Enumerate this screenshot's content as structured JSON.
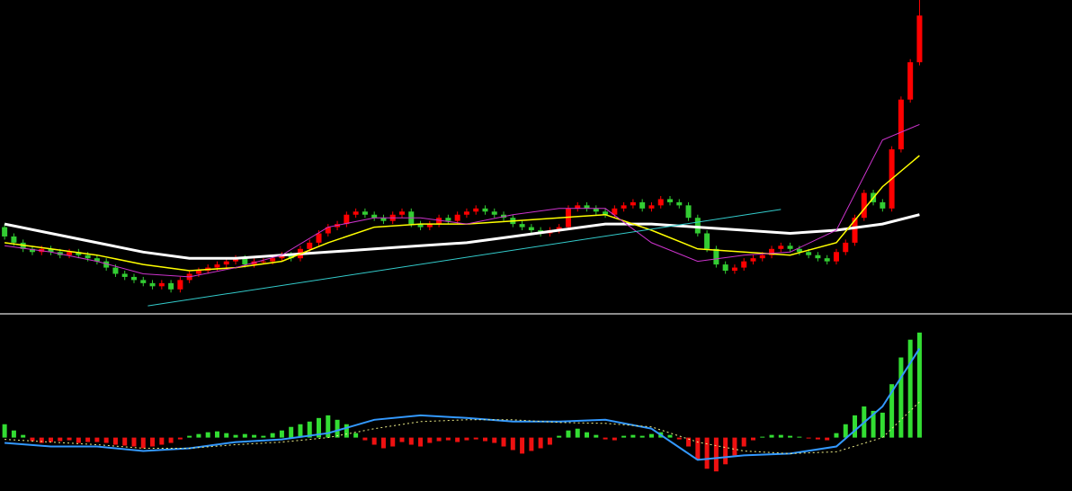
{
  "chart_data": [
    {
      "type": "candlestick",
      "up_color": "#ff0000",
      "down_color": "#33cc33",
      "xlim": [
        -0.5,
        115.5
      ],
      "ylim": [
        0,
        100
      ],
      "open": [
        27,
        24,
        22,
        20,
        19,
        20,
        19,
        18,
        19,
        18,
        17,
        16,
        14,
        12,
        11,
        10,
        9,
        8,
        9,
        7,
        10,
        12,
        13,
        14,
        15,
        16,
        17,
        15,
        16,
        16,
        17,
        18,
        17,
        20,
        22,
        25,
        27,
        28,
        31,
        32,
        31,
        30,
        29,
        31,
        32,
        28,
        27,
        28,
        30,
        29,
        31,
        32,
        33,
        32,
        31,
        30,
        28,
        27,
        26,
        25,
        26,
        27,
        33,
        34,
        33,
        32,
        31,
        33,
        34,
        35,
        33,
        34,
        36,
        35,
        34,
        30,
        25,
        20,
        15,
        13,
        14,
        16,
        17,
        18,
        20,
        21,
        20,
        19,
        18,
        17,
        16,
        19,
        22,
        30,
        38,
        35,
        33,
        52,
        68,
        80
      ],
      "high": [
        28,
        25,
        23,
        21,
        21,
        21,
        20,
        20,
        20,
        19,
        18,
        17,
        15,
        13,
        12,
        11,
        10,
        10,
        10,
        11,
        13,
        14,
        15,
        16,
        17,
        18,
        18,
        17,
        17,
        18,
        19,
        19,
        21,
        23,
        26,
        28,
        29,
        32,
        33,
        33,
        32,
        31,
        32,
        33,
        33,
        29,
        29,
        31,
        31,
        32,
        33,
        34,
        34,
        33,
        32,
        31,
        29,
        28,
        27,
        27,
        28,
        34,
        35,
        35,
        34,
        33,
        34,
        35,
        36,
        36,
        35,
        37,
        37,
        36,
        35,
        31,
        26,
        21,
        16,
        15,
        17,
        18,
        19,
        21,
        22,
        22,
        21,
        20,
        19,
        18,
        20,
        23,
        31,
        39,
        39,
        36,
        53,
        69,
        81,
        100
      ],
      "low": [
        23,
        21,
        19,
        18,
        18,
        18,
        17,
        17,
        17,
        16,
        15,
        13,
        11,
        10,
        9,
        8,
        7,
        7,
        6,
        6,
        9,
        11,
        12,
        13,
        14,
        15,
        14,
        14,
        15,
        15,
        16,
        16,
        16,
        19,
        21,
        24,
        26,
        27,
        30,
        30,
        29,
        28,
        28,
        30,
        27,
        26,
        26,
        27,
        28,
        28,
        30,
        31,
        31,
        30,
        29,
        27,
        26,
        25,
        24,
        24,
        25,
        26,
        32,
        32,
        31,
        30,
        30,
        32,
        33,
        32,
        32,
        33,
        34,
        33,
        29,
        24,
        19,
        14,
        12,
        12,
        13,
        15,
        16,
        17,
        19,
        19,
        18,
        17,
        16,
        15,
        15,
        18,
        21,
        29,
        34,
        32,
        32,
        51,
        67,
        79
      ],
      "close": [
        24,
        22,
        20,
        19,
        20,
        19,
        18,
        19,
        18,
        17,
        16,
        14,
        12,
        11,
        10,
        9,
        8,
        9,
        7,
        10,
        12,
        13,
        14,
        15,
        16,
        17,
        15,
        16,
        16,
        17,
        18,
        17,
        20,
        22,
        25,
        27,
        28,
        31,
        32,
        31,
        30,
        29,
        31,
        32,
        28,
        27,
        28,
        30,
        29,
        31,
        32,
        33,
        32,
        31,
        30,
        28,
        27,
        26,
        25,
        26,
        27,
        33,
        34,
        33,
        32,
        31,
        33,
        34,
        35,
        33,
        34,
        36,
        35,
        34,
        30,
        25,
        20,
        15,
        13,
        14,
        16,
        17,
        18,
        20,
        21,
        20,
        19,
        18,
        17,
        16,
        19,
        22,
        30,
        38,
        35,
        33,
        52,
        68,
        80,
        95
      ],
      "lines": [
        {
          "color": "#ffffff",
          "width": 3,
          "x": [
            0,
            5,
            10,
            15,
            20,
            25,
            30,
            35,
            40,
            45,
            50,
            55,
            60,
            65,
            70,
            75,
            80,
            85,
            90,
            95,
            99
          ],
          "values": [
            28,
            25,
            22,
            19,
            17,
            17,
            18,
            19,
            20,
            21,
            22,
            24,
            26,
            28,
            28,
            27,
            26,
            25,
            26,
            28,
            31
          ]
        },
        {
          "color": "#ffff00",
          "width": 1.5,
          "x": [
            0,
            5,
            10,
            15,
            20,
            25,
            30,
            35,
            40,
            45,
            50,
            55,
            60,
            65,
            70,
            75,
            80,
            85,
            90,
            95,
            99
          ],
          "values": [
            22,
            20,
            18,
            15,
            13,
            14,
            16,
            22,
            27,
            28,
            28,
            29,
            30,
            31,
            26,
            20,
            19,
            18,
            22,
            40,
            50
          ]
        },
        {
          "color": "#cc33cc",
          "width": 1,
          "x": [
            0,
            5,
            10,
            15,
            20,
            25,
            30,
            35,
            40,
            45,
            50,
            55,
            60,
            65,
            70,
            75,
            80,
            85,
            90,
            95,
            99
          ],
          "values": [
            21,
            19,
            16,
            12,
            11,
            14,
            18,
            27,
            30,
            30,
            28,
            31,
            33,
            33,
            22,
            16,
            18,
            19,
            26,
            55,
            60
          ]
        },
        {
          "color": "#33cccc",
          "width": 1,
          "x": [
            15.5,
            84
          ],
          "values": [
            1.7,
            32.7
          ]
        }
      ]
    },
    {
      "type": "macd",
      "pos_color": "#33dd33",
      "neg_color": "#ee1111",
      "xlim": [
        -0.5,
        115.5
      ],
      "ylim": [
        -60,
        138
      ],
      "values": [
        15,
        8,
        3,
        -4,
        -6,
        -5,
        -4,
        -3,
        -6,
        -5,
        -5,
        -6,
        -8,
        -9,
        -10,
        -12,
        -10,
        -8,
        -6,
        -2,
        2,
        4,
        6,
        7,
        5,
        3,
        4,
        3,
        2,
        5,
        8,
        12,
        15,
        18,
        22,
        25,
        20,
        15,
        5,
        -3,
        -8,
        -12,
        -10,
        -5,
        -8,
        -10,
        -6,
        -4,
        -3,
        -5,
        -3,
        -2,
        -4,
        -6,
        -10,
        -14,
        -18,
        -15,
        -12,
        -8,
        2,
        8,
        10,
        6,
        3,
        -2,
        -3,
        2,
        3,
        2,
        4,
        6,
        3,
        -2,
        -10,
        -25,
        -35,
        -38,
        -30,
        -20,
        -10,
        -3,
        1,
        3,
        3,
        2,
        1,
        -1,
        -2,
        -3,
        5,
        15,
        25,
        35,
        30,
        28,
        60,
        90,
        110,
        118
      ],
      "lines": [
        {
          "color": "#3399ff",
          "width": 2,
          "dash": false,
          "x": [
            0,
            5,
            10,
            15,
            20,
            25,
            30,
            35,
            40,
            45,
            50,
            55,
            60,
            65,
            70,
            75,
            80,
            85,
            90,
            95,
            99
          ],
          "values": [
            -6,
            -10,
            -10,
            -15,
            -12,
            -5,
            -2,
            5,
            20,
            25,
            22,
            18,
            18,
            20,
            10,
            -25,
            -20,
            -18,
            -10,
            35,
            100
          ]
        },
        {
          "color": "#eeee88",
          "width": 1,
          "dash": true,
          "x": [
            0,
            5,
            10,
            15,
            20,
            25,
            30,
            35,
            40,
            45,
            50,
            55,
            60,
            65,
            70,
            75,
            80,
            85,
            90,
            95,
            99
          ],
          "values": [
            -2,
            -5,
            -8,
            -12,
            -12,
            -8,
            -5,
            0,
            10,
            18,
            20,
            20,
            17,
            16,
            12,
            -5,
            -15,
            -18,
            -16,
            0,
            40
          ]
        }
      ]
    }
  ]
}
